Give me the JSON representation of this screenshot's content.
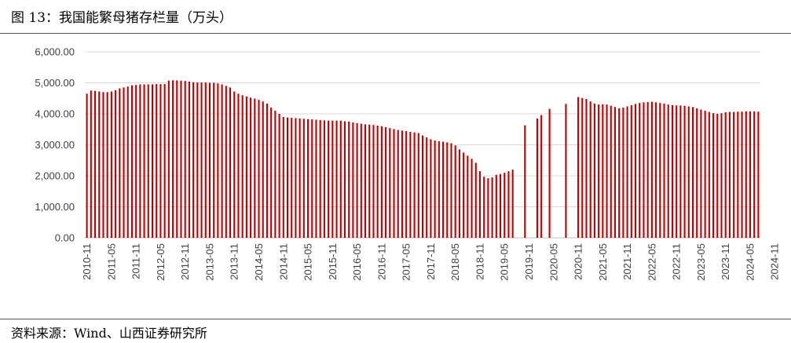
{
  "title": "图 13：我国能繁母猪存栏量（万头）",
  "source": "资料来源：Wind、山西证券研究所",
  "chart_data": {
    "type": "bar",
    "title": "我国能繁母猪存栏量（万头）",
    "color": "#C00000",
    "ylim": [
      0,
      6000
    ],
    "yticks": [
      "0.00",
      "1,000.00",
      "2,000.00",
      "3,000.00",
      "4,000.00",
      "5,000.00",
      "6,000.00"
    ],
    "xtick_labels": [
      "2010-11",
      "2011-05",
      "2011-11",
      "2012-05",
      "2012-11",
      "2013-05",
      "2013-11",
      "2014-05",
      "2014-11",
      "2015-05",
      "2015-11",
      "2016-05",
      "2016-11",
      "2017-05",
      "2017-11",
      "2018-05",
      "2018-11",
      "2019-05",
      "2019-11",
      "2020-05",
      "2020-11",
      "2021-05",
      "2021-11",
      "2022-05",
      "2022-11",
      "2023-05",
      "2023-11",
      "2024-05",
      "2024-11"
    ],
    "grid": true,
    "series": [
      {
        "start": "2010-11",
        "frequency": "monthly",
        "values": [
          4650,
          4750,
          4740,
          4720,
          4700,
          4700,
          4720,
          4760,
          4820,
          4850,
          4880,
          4920,
          4930,
          4950,
          4950,
          4950,
          4950,
          4960,
          4960,
          4960,
          5070,
          5080,
          5080,
          5070,
          5060,
          5040,
          5020,
          5010,
          5010,
          5010,
          5000,
          5000,
          4980,
          4950,
          4900,
          4850,
          4720,
          4650,
          4600,
          4560,
          4520,
          4490,
          4450,
          4400,
          4330,
          4200,
          4100,
          4000,
          3900,
          3880,
          3870,
          3860,
          3850,
          3840,
          3830,
          3820,
          3810,
          3800,
          3790,
          3780,
          3780,
          3780,
          3780,
          3760,
          3750,
          3720,
          3700,
          3680,
          3660,
          3650,
          3640,
          3620,
          3600,
          3570,
          3540,
          3510,
          3480,
          3460,
          3440,
          3420,
          3400,
          3380,
          3300,
          3240,
          3180,
          3140,
          3120,
          3100,
          3080,
          3050,
          2980,
          2850,
          2750,
          2650,
          2550,
          2420,
          2150,
          1970,
          1920,
          1950,
          2030,
          2060,
          2100,
          2150,
          2200,
          null,
          null,
          3630,
          null,
          null,
          3850,
          3960,
          null,
          4160,
          null,
          null,
          null,
          4320,
          null,
          null,
          4540,
          4510,
          4480,
          4400,
          4330,
          4300,
          4310,
          4300,
          4260,
          4220,
          4180,
          4200,
          4240,
          4280,
          4320,
          4350,
          4370,
          4380,
          4390,
          4370,
          4350,
          4330,
          4300,
          4280,
          4270,
          4270,
          4260,
          4240,
          4220,
          4180,
          4140,
          4100,
          4060,
          4020,
          4000,
          4020,
          4050,
          4060,
          4060,
          4070,
          4070,
          4080,
          4080,
          4080,
          4070
        ]
      }
    ]
  }
}
